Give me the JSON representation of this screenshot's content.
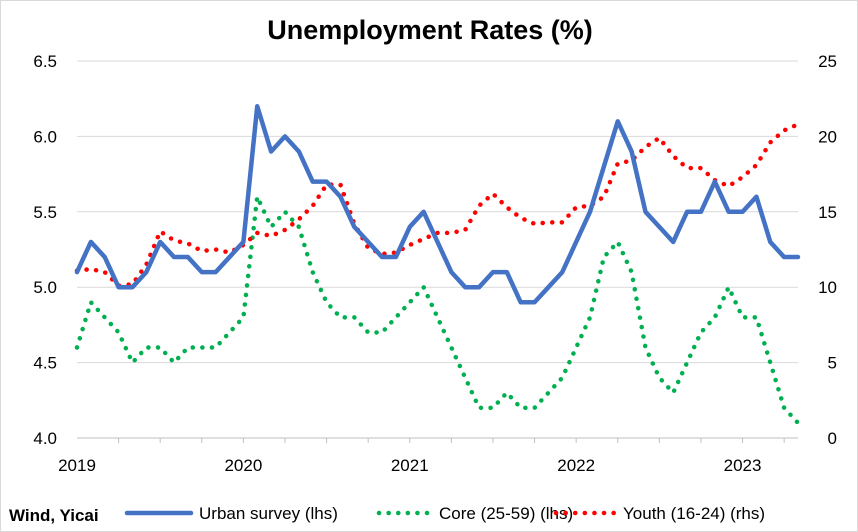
{
  "chart_data": {
    "type": "line",
    "title": "Unemployment Rates (%)",
    "source": "Wind, Yicai",
    "x_tick_labels": [
      "2019",
      "2020",
      "2021",
      "2022",
      "2023"
    ],
    "x_start": "2019-01",
    "x_end": "2023-05",
    "left_axis": {
      "ylim": [
        4.0,
        6.5
      ],
      "ticks": [
        "4.0",
        "4.5",
        "5.0",
        "5.5",
        "6.0",
        "6.5"
      ]
    },
    "right_axis": {
      "ylim": [
        0,
        25
      ],
      "ticks": [
        "0",
        "5",
        "10",
        "15",
        "20",
        "25"
      ]
    },
    "grid": true,
    "legend_position": "bottom",
    "series": [
      {
        "name": "Urban survey (lhs)",
        "axis": "left",
        "color": "#4472c4",
        "style": "solid",
        "x": [
          "2019-01",
          "2019-02",
          "2019-03",
          "2019-04",
          "2019-05",
          "2019-06",
          "2019-07",
          "2019-08",
          "2019-09",
          "2019-10",
          "2019-11",
          "2019-12",
          "2020-01",
          "2020-02",
          "2020-03",
          "2020-04",
          "2020-05",
          "2020-06",
          "2020-07",
          "2020-08",
          "2020-09",
          "2020-10",
          "2020-11",
          "2020-12",
          "2021-01",
          "2021-02",
          "2021-03",
          "2021-04",
          "2021-05",
          "2021-06",
          "2021-07",
          "2021-08",
          "2021-09",
          "2021-10",
          "2021-11",
          "2021-12",
          "2022-01",
          "2022-02",
          "2022-03",
          "2022-04",
          "2022-05",
          "2022-06",
          "2022-07",
          "2022-08",
          "2022-09",
          "2022-10",
          "2022-11",
          "2022-12",
          "2023-01",
          "2023-02",
          "2023-03",
          "2023-04",
          "2023-05"
        ],
        "values": [
          5.1,
          5.3,
          5.2,
          5.0,
          5.0,
          5.1,
          5.3,
          5.2,
          5.2,
          5.1,
          5.1,
          5.2,
          5.3,
          6.2,
          5.9,
          6.0,
          5.9,
          5.7,
          5.7,
          5.6,
          5.4,
          5.3,
          5.2,
          5.2,
          5.4,
          5.5,
          5.3,
          5.1,
          5.0,
          5.0,
          5.1,
          5.1,
          4.9,
          4.9,
          5.0,
          5.1,
          5.3,
          5.5,
          5.8,
          6.1,
          5.9,
          5.5,
          5.4,
          5.3,
          5.5,
          5.5,
          5.7,
          5.5,
          5.5,
          5.6,
          5.3,
          5.2,
          5.2
        ]
      },
      {
        "name": "Core (25-59) (lhs)",
        "axis": "left",
        "color": "#00b050",
        "style": "dotted",
        "x": [
          "2019-01",
          "2019-02",
          "2019-03",
          "2019-04",
          "2019-05",
          "2019-06",
          "2019-07",
          "2019-08",
          "2019-09",
          "2019-10",
          "2019-11",
          "2019-12",
          "2020-01",
          "2020-02",
          "2020-03",
          "2020-04",
          "2020-05",
          "2020-06",
          "2020-07",
          "2020-08",
          "2020-09",
          "2020-10",
          "2020-11",
          "2020-12",
          "2021-01",
          "2021-02",
          "2021-03",
          "2021-04",
          "2021-05",
          "2021-06",
          "2021-07",
          "2021-08",
          "2021-09",
          "2021-10",
          "2021-11",
          "2021-12",
          "2022-01",
          "2022-02",
          "2022-03",
          "2022-04",
          "2022-05",
          "2022-06",
          "2022-07",
          "2022-08",
          "2022-09",
          "2022-10",
          "2022-11",
          "2022-12",
          "2023-01",
          "2023-02",
          "2023-03",
          "2023-04",
          "2023-05"
        ],
        "values": [
          4.6,
          4.9,
          4.8,
          4.7,
          4.5,
          4.6,
          4.6,
          4.5,
          4.6,
          4.6,
          4.6,
          4.7,
          4.8,
          5.6,
          5.4,
          5.5,
          5.4,
          5.1,
          4.9,
          4.8,
          4.8,
          4.7,
          4.7,
          4.8,
          4.9,
          5.0,
          4.8,
          4.6,
          4.4,
          4.2,
          4.2,
          4.3,
          4.2,
          4.2,
          4.3,
          4.4,
          4.6,
          4.8,
          5.2,
          5.3,
          5.1,
          4.6,
          4.4,
          4.3,
          4.5,
          4.7,
          4.8,
          5.0,
          4.8,
          4.8,
          4.5,
          4.2,
          4.1
        ]
      },
      {
        "name": "Youth (16-24) (rhs)",
        "axis": "right",
        "color": "#ff0000",
        "style": "dotted",
        "x": [
          "2019-01",
          "2019-02",
          "2019-03",
          "2019-04",
          "2019-05",
          "2019-06",
          "2019-07",
          "2019-08",
          "2019-09",
          "2019-10",
          "2019-11",
          "2019-12",
          "2020-01",
          "2020-02",
          "2020-03",
          "2020-04",
          "2020-05",
          "2020-06",
          "2020-07",
          "2020-08",
          "2020-09",
          "2020-10",
          "2020-11",
          "2020-12",
          "2021-01",
          "2021-02",
          "2021-03",
          "2021-04",
          "2021-05",
          "2021-06",
          "2021-07",
          "2021-08",
          "2021-09",
          "2021-10",
          "2021-11",
          "2021-12",
          "2022-01",
          "2022-02",
          "2022-03",
          "2022-04",
          "2022-05",
          "2022-06",
          "2022-07",
          "2022-08",
          "2022-09",
          "2022-10",
          "2022-11",
          "2022-12",
          "2023-01",
          "2023-02",
          "2023-03",
          "2023-04",
          "2023-05"
        ],
        "values": [
          11.1,
          11.2,
          11.0,
          10.1,
          10.2,
          11.5,
          13.7,
          13.1,
          12.9,
          12.4,
          12.5,
          12.3,
          12.8,
          13.6,
          13.4,
          13.8,
          14.5,
          15.4,
          16.8,
          16.8,
          14.2,
          12.6,
          12.2,
          12.3,
          12.8,
          13.2,
          13.6,
          13.6,
          13.8,
          15.4,
          16.2,
          15.3,
          14.6,
          14.2,
          14.3,
          14.3,
          15.3,
          15.4,
          16.0,
          18.2,
          18.4,
          19.3,
          19.9,
          18.7,
          17.9,
          17.9,
          17.1,
          16.7,
          17.3,
          18.1,
          19.6,
          20.4,
          20.8
        ]
      }
    ]
  }
}
